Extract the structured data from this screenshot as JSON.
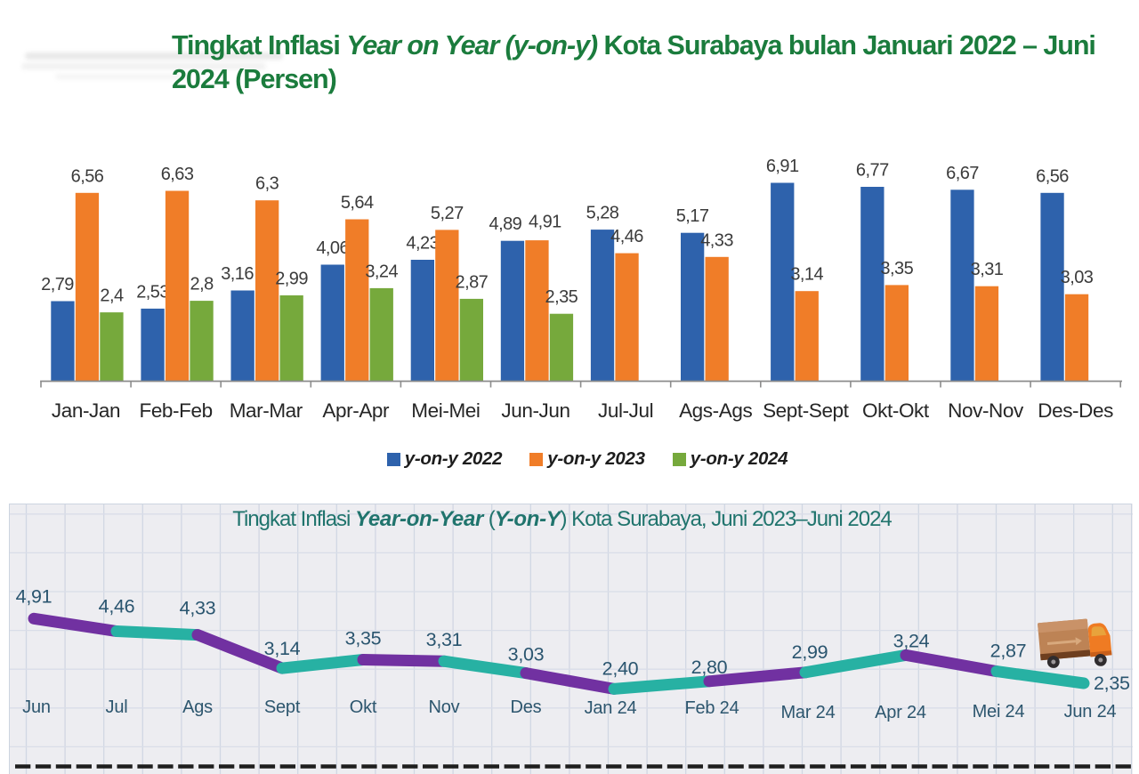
{
  "page": {
    "background": "#ffffff",
    "watermark": "illegible-light-gray-smudge"
  },
  "icons": {
    "truck": "delivery-truck-icon"
  },
  "chart_data": [
    {
      "type": "bar",
      "title": "Tingkat Inflasi Year on Year (y-on-y) Kota Surabaya bulan Januari 2022 – Juni 2024 (Persen)",
      "title_color": "#1b7c3d",
      "title_lines": [
        [
          {
            "t": "Tingkat Inflasi ",
            "i": 0
          },
          {
            "t": "Year on Year (y-on-y)",
            "i": 1
          },
          {
            "t": " Kota Surabaya bulan Januari 2022 – Juni",
            "i": 0
          }
        ],
        [
          {
            "t": "2024 (Persen)",
            "i": 0
          }
        ]
      ],
      "categories": [
        "Jan-Jan",
        "Feb-Feb",
        "Mar-Mar",
        "Apr-Apr",
        "Mei-Mei",
        "Jun-Jun",
        "Jul-Jul",
        "Ags-Ags",
        "Sept-Sept",
        "Okt-Okt",
        "Nov-Nov",
        "Des-Des"
      ],
      "series": [
        {
          "name": "y-on-y 2022",
          "color": "#2e62ac",
          "values": [
            2.79,
            2.53,
            3.16,
            4.06,
            4.23,
            4.89,
            5.28,
            5.17,
            6.91,
            6.77,
            6.67,
            6.56
          ],
          "labels": [
            "2,79",
            "2,53",
            "3,16",
            "4,06",
            "4,23",
            "4,89",
            "5,28",
            "5,17",
            "6,91",
            "6,77",
            "6,67",
            "6,56"
          ]
        },
        {
          "name": "y-on-y 2023",
          "color": "#f07d28",
          "values": [
            6.56,
            6.63,
            6.3,
            5.64,
            5.27,
            4.91,
            4.46,
            4.33,
            3.14,
            3.35,
            3.31,
            3.03
          ],
          "labels": [
            "6,56",
            "6,63",
            "6,3",
            "5,64",
            "5,27",
            "4,91",
            "4,46",
            "4,33",
            "3,14",
            "3,35",
            "3,31",
            "3,03"
          ]
        },
        {
          "name": "y-on-y 2024",
          "color": "#76a93c",
          "values": [
            2.4,
            2.8,
            2.99,
            3.24,
            2.87,
            2.35
          ],
          "labels": [
            "2,4",
            "2,8",
            "2,99",
            "3,24",
            "2,87",
            "2,35"
          ]
        }
      ],
      "value_label_color": "#3b3b3b",
      "category_label_color": "#262626",
      "axis_color": "#8c8c8c",
      "legend_position": "bottom",
      "grid": false
    },
    {
      "type": "line",
      "title": "Tingkat Inflasi Year-on-Year (Y-on-Y) Kota Surabaya, Juni 2023–Juni 2024",
      "title_color": "#20746d",
      "title_parts": [
        {
          "t": "Tingkat Inflasi ",
          "i": 0,
          "b": 0
        },
        {
          "t": "Year-on-Year",
          "i": 1,
          "b": 1
        },
        {
          "t": " (",
          "i": 0,
          "b": 0
        },
        {
          "t": "Y-on-Y",
          "i": 1,
          "b": 1
        },
        {
          "t": ") Kota Surabaya, Juni 2023–Juni 2024",
          "i": 0,
          "b": 0
        }
      ],
      "months": [
        "Jun",
        "Jul",
        "Ags",
        "Sept",
        "Okt",
        "Nov",
        "Des",
        "Jan 24",
        "Feb 24",
        "Mar 24",
        "Apr 24",
        "Mei 24",
        "Jun 24"
      ],
      "values": [
        4.91,
        4.46,
        4.33,
        3.14,
        3.35,
        3.31,
        3.03,
        2.4,
        2.8,
        2.99,
        3.24,
        2.87,
        2.35
      ],
      "labels": [
        "4,91",
        "4,46",
        "4,33",
        "3,14",
        "3,35",
        "3,31",
        "3,03",
        "2,40",
        "2,80",
        "2,99",
        "3,24",
        "2,87",
        "2,35"
      ],
      "segment_colors": [
        "#7131a1",
        "#27b1a3"
      ],
      "label_color": "#2a556f",
      "month_label_color": "#2d566e",
      "background": "#ededf1",
      "grid": true,
      "divider_style": "dashed",
      "divider_color": "#1e1e1e"
    }
  ]
}
